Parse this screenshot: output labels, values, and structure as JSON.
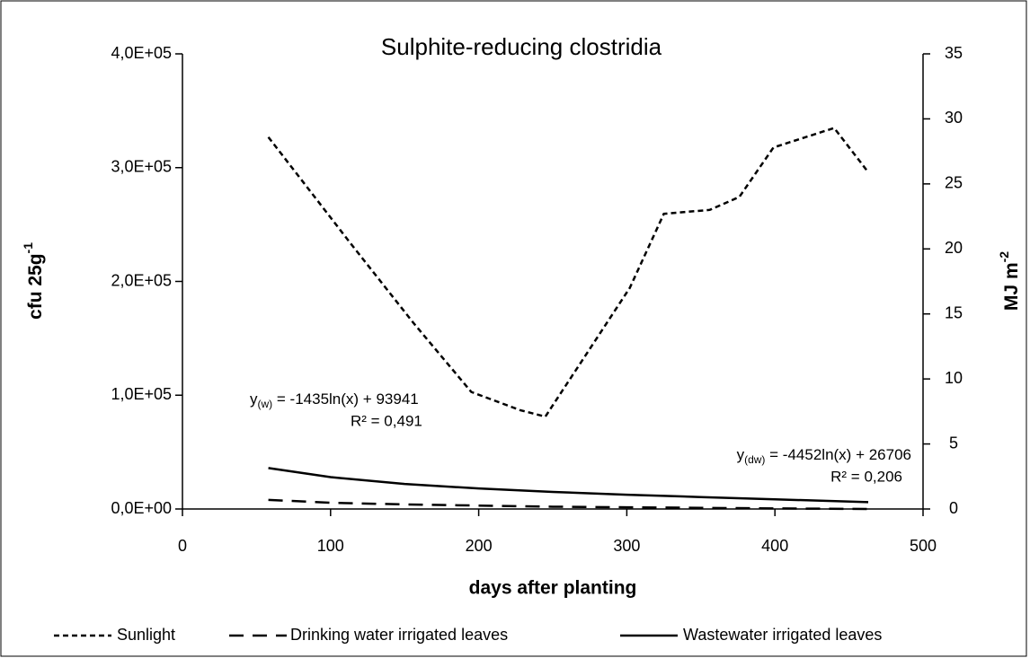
{
  "chart_data": {
    "type": "line",
    "title": "Sulphite-reducing clostridia",
    "xlabel": "days after planting",
    "ylabel": {
      "text": "cfu 25g",
      "sup": "-1"
    },
    "y2label": {
      "text": "MJ m",
      "sup": "-2"
    },
    "xlim": [
      0,
      500
    ],
    "xticks": [
      0,
      100,
      200,
      300,
      400,
      500
    ],
    "ylim": [
      0,
      400000
    ],
    "yticks": [
      {
        "value": 0,
        "label": "0,0E+00"
      },
      {
        "value": 100000,
        "label": "1,0E+05"
      },
      {
        "value": 200000,
        "label": "2,0E+05"
      },
      {
        "value": 300000,
        "label": "3,0E+05"
      },
      {
        "value": 400000,
        "label": "4,0E+05"
      }
    ],
    "y2lim": [
      0,
      35
    ],
    "y2ticks": [
      0,
      5,
      10,
      15,
      20,
      25,
      30,
      35
    ],
    "series": [
      {
        "name": "Sunlight",
        "color": "#000000",
        "dash": "short",
        "axis": "y2",
        "x": [
          58,
          113,
          156,
          195,
          228,
          245,
          302,
          325,
          356,
          376,
          399,
          440,
          463
        ],
        "values": [
          28.6,
          20.5,
          14.3,
          9.0,
          7.6,
          7.1,
          17.0,
          22.7,
          23.0,
          24.0,
          27.8,
          29.3,
          25.9
        ]
      },
      {
        "name": "Drinking water irrigated leaves",
        "color": "#000000",
        "dash": "long",
        "axis": "y",
        "x": [
          58,
          100,
          150,
          200,
          250,
          300,
          350,
          400,
          463
        ],
        "values": [
          8000,
          5500,
          4000,
          3000,
          2000,
          1500,
          1000,
          500,
          0
        ]
      },
      {
        "name": "Wastewater irrigated leaves",
        "color": "#000000",
        "dash": "solid",
        "axis": "y",
        "x": [
          58,
          100,
          150,
          200,
          250,
          300,
          350,
          400,
          463
        ],
        "values": [
          36000,
          28000,
          22000,
          18000,
          15000,
          12500,
          10500,
          8500,
          6000
        ]
      }
    ],
    "annotations": [
      {
        "y": "y",
        "sub": "(w)",
        "rest": " = -1435ln(x) + 93941",
        "r2": "R² = 0,491"
      },
      {
        "y": "y",
        "sub": "(dw)",
        "rest": " = -4452ln(x) + 26706",
        "r2": "R² = 0,206"
      }
    ],
    "legend": "bottom"
  }
}
